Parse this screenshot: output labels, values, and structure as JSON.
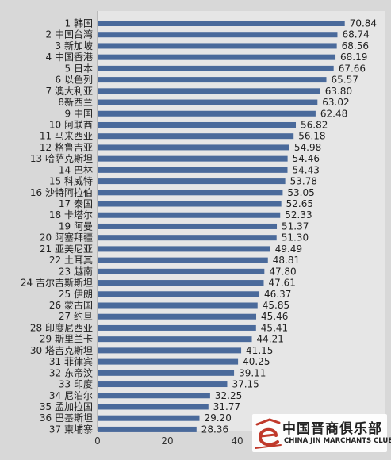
{
  "chart_data": {
    "type": "bar",
    "orientation": "horizontal",
    "title": "",
    "xlabel": "",
    "ylabel": "",
    "xlim": [
      0,
      75
    ],
    "x_ticks": [
      0,
      20,
      40
    ],
    "grid": false,
    "bar_color": "#4a6a9b",
    "categories": [
      "1 韩国",
      "2 中国台湾",
      "3 新加坡",
      "4 中国香港",
      "5 日本",
      "6 以色列",
      "7 澳大利亚",
      "8新西兰",
      "9 中国",
      "10 阿联酋",
      "11 马来西亚",
      "12 格鲁吉亚",
      "13 哈萨克斯坦",
      "14 巴林",
      "15 科威特",
      "16 沙特阿拉伯",
      "17 泰国",
      "18 卡塔尔",
      "19 阿曼",
      "20 阿塞拜疆",
      "21 亚美尼亚",
      "22 土耳其",
      "23 越南",
      "24 吉尔吉斯斯坦",
      "25 伊朗",
      "26 蒙古国",
      "27 约旦",
      "28 印度尼西亚",
      "29 斯里兰卡",
      "30 塔吉克斯坦",
      "31 菲律宾",
      "32 东帝汶",
      "33 印度",
      "34 尼泊尔",
      "35 孟加拉国",
      "36 巴基斯坦",
      "37 柬埔寨"
    ],
    "values": [
      70.84,
      68.74,
      68.56,
      68.19,
      67.66,
      65.57,
      63.8,
      63.02,
      62.48,
      56.82,
      56.18,
      54.98,
      54.46,
      54.43,
      53.78,
      53.05,
      52.65,
      52.33,
      51.37,
      51.3,
      49.49,
      48.81,
      47.8,
      47.61,
      46.37,
      45.85,
      45.46,
      45.41,
      44.21,
      41.15,
      40.25,
      39.11,
      37.15,
      32.25,
      31.77,
      29.2,
      28.36
    ],
    "value_labels": [
      "70.84",
      "68.74",
      "68.56",
      "68.19",
      "67.66",
      "65.57",
      "63.80",
      "63.02",
      "62.48",
      "56.82",
      "56.18",
      "54.98",
      "54.46",
      "54.43",
      "53.78",
      "53.05",
      "52.65",
      "52.33",
      "51.37",
      "51.30",
      "49.49",
      "48.81",
      "47.80",
      "47.61",
      "46.37",
      "45.85",
      "45.46",
      "45.41",
      "44.21",
      "41.15",
      "40.25",
      "39.11",
      "37.15",
      "32.25",
      "31.77",
      "29.20",
      "28.36"
    ]
  },
  "watermark": {
    "name_cn": "中国晋商俱乐部",
    "name_en": "CHINA JIN MARCHANTS CLUB",
    "logo_icon": "jin-e-logo-icon",
    "logo_color": "#c0392b"
  }
}
